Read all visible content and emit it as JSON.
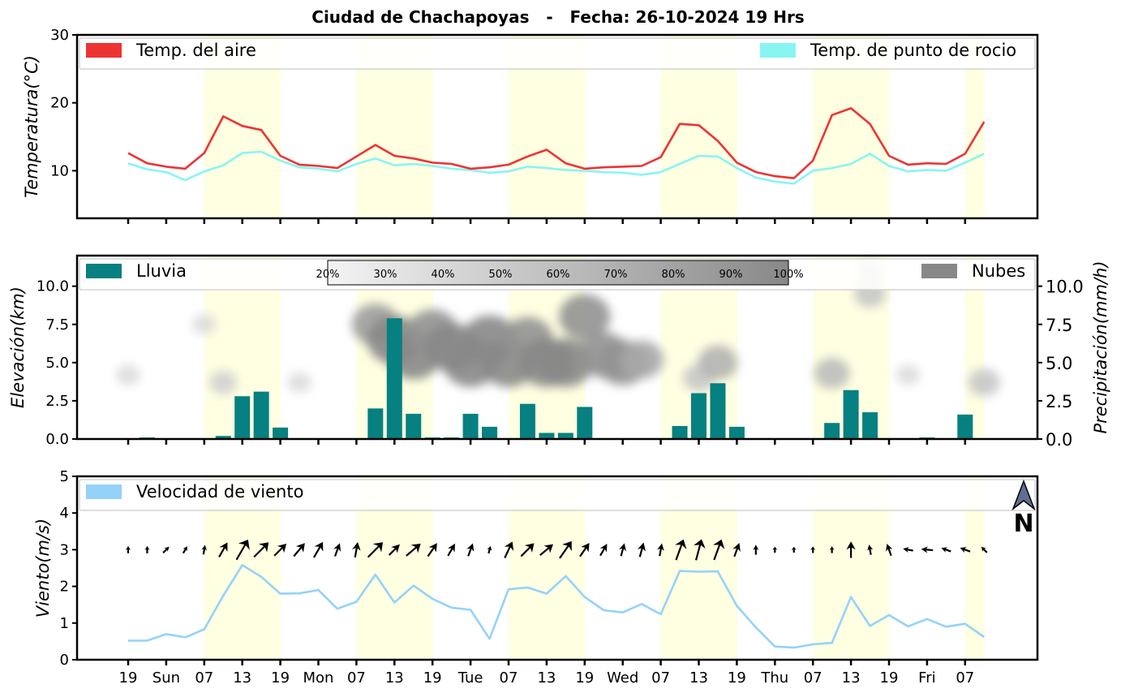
{
  "title": "Ciudad de Chachapoyas   -   Fecha: 26-10-2024 19 Hrs",
  "colors": {
    "temp_air": "#ee3333",
    "dew_point": "#88f5f2",
    "rain": "#068080",
    "clouds": "#888888",
    "wind": "#94d2fa",
    "daylight_band": "#ffffe2"
  },
  "x_axis": {
    "ticks": [
      "19",
      "Sun",
      "07",
      "13",
      "19",
      "Mon",
      "07",
      "13",
      "19",
      "Tue",
      "07",
      "13",
      "19",
      "Wed",
      "07",
      "13",
      "19",
      "Thu",
      "07",
      "13",
      "19",
      "Fri",
      "07"
    ],
    "step_hours": 3,
    "tick_every_steps": 2,
    "start_hour": 19,
    "daylight_hours": [
      7,
      19
    ]
  },
  "chart_data": [
    {
      "type": "line",
      "ylabel": "Temperatura(°C)",
      "ylim": [
        3,
        30
      ],
      "yticks": [
        10,
        20,
        30
      ],
      "legend": [
        {
          "label": "Temp. del aire",
          "placement": "top-left"
        },
        {
          "label": "Temp. de punto de rocio",
          "placement": "top-right"
        }
      ],
      "series": [
        {
          "name": "Temp. del aire",
          "values": [
            12.6,
            11.1,
            10.6,
            10.3,
            12.6,
            18.0,
            16.6,
            16.0,
            12.2,
            10.9,
            10.7,
            10.4,
            12.1,
            13.8,
            12.2,
            11.8,
            11.2,
            11.0,
            10.3,
            10.5,
            10.9,
            12.1,
            13.1,
            11.1,
            10.3,
            10.5,
            10.6,
            10.7,
            12.0,
            16.9,
            16.7,
            14.4,
            11.2,
            9.8,
            9.2,
            8.9,
            11.5,
            18.2,
            19.2,
            16.9,
            12.2,
            10.9,
            11.1,
            11.0,
            12.5,
            17.2
          ]
        },
        {
          "name": "Temp. de punto de rocio",
          "values": [
            11.1,
            10.2,
            9.8,
            8.6,
            9.9,
            10.8,
            12.6,
            12.8,
            11.5,
            10.5,
            10.3,
            9.9,
            11.0,
            11.8,
            10.8,
            11.0,
            10.7,
            10.3,
            10.1,
            9.7,
            9.9,
            10.6,
            10.4,
            10.1,
            10.0,
            9.8,
            9.7,
            9.4,
            9.8,
            11.0,
            12.2,
            12.1,
            10.4,
            9.0,
            8.4,
            8.1,
            10.0,
            10.4,
            11.0,
            12.5,
            10.7,
            9.9,
            10.1,
            10.0,
            11.2,
            12.5
          ]
        }
      ]
    },
    {
      "type": "bar",
      "ylabel": "Elevación(km)",
      "ylabel_right": "Precipitación(mm/h)",
      "ylim": [
        0,
        12
      ],
      "yticks": [
        0.0,
        2.5,
        5.0,
        7.5,
        10.0
      ],
      "yticks_right": [
        0.0,
        2.5,
        5.0,
        7.5,
        10.0
      ],
      "legend": [
        {
          "label": "Lluvia",
          "placement": "top-left"
        },
        {
          "label": "Nubes",
          "placement": "top-right"
        }
      ],
      "colorbar_labels": [
        "20%",
        "30%",
        "40%",
        "50%",
        "60%",
        "70%",
        "80%",
        "90%",
        "100%"
      ],
      "series": [
        {
          "name": "Lluvia",
          "values": [
            0.0,
            0.1,
            0.0,
            0.0,
            0.0,
            0.2,
            2.8,
            3.1,
            0.75,
            0.05,
            0.05,
            0.05,
            0.0,
            2.0,
            7.9,
            1.65,
            0.1,
            0.1,
            1.65,
            0.8,
            0.0,
            2.3,
            0.4,
            0.4,
            2.1,
            0.0,
            0.0,
            0.0,
            0.0,
            0.85,
            3.0,
            3.65,
            0.8,
            0.0,
            0.0,
            0.0,
            0.0,
            1.05,
            3.2,
            1.75,
            0.0,
            0.0,
            0.1,
            0.0,
            1.6,
            0.0
          ]
        }
      ],
      "clouds": [
        {
          "x": 0,
          "y": 4.2,
          "coverage": 20
        },
        {
          "x": 4,
          "y": 7.5,
          "coverage": 20
        },
        {
          "x": 5,
          "y": 3.7,
          "coverage": 30
        },
        {
          "x": 9,
          "y": 3.7,
          "coverage": 20
        },
        {
          "x": 13,
          "y": 7.5,
          "coverage": 80
        },
        {
          "x": 14,
          "y": 6.5,
          "coverage": 100
        },
        {
          "x": 15,
          "y": 5.5,
          "coverage": 100
        },
        {
          "x": 16,
          "y": 7.0,
          "coverage": 90
        },
        {
          "x": 17,
          "y": 6.0,
          "coverage": 100
        },
        {
          "x": 18,
          "y": 5.0,
          "coverage": 100
        },
        {
          "x": 19,
          "y": 6.5,
          "coverage": 100
        },
        {
          "x": 20,
          "y": 5.0,
          "coverage": 100
        },
        {
          "x": 21,
          "y": 6.5,
          "coverage": 90
        },
        {
          "x": 22,
          "y": 5.0,
          "coverage": 100
        },
        {
          "x": 23,
          "y": 5.0,
          "coverage": 100
        },
        {
          "x": 24,
          "y": 8.0,
          "coverage": 90
        },
        {
          "x": 25,
          "y": 5.5,
          "coverage": 90
        },
        {
          "x": 26,
          "y": 5.0,
          "coverage": 90
        },
        {
          "x": 27,
          "y": 5.2,
          "coverage": 70
        },
        {
          "x": 30,
          "y": 4.0,
          "coverage": 40
        },
        {
          "x": 31,
          "y": 5.0,
          "coverage": 60
        },
        {
          "x": 37,
          "y": 4.3,
          "coverage": 50
        },
        {
          "x": 39,
          "y": 11.0,
          "coverage": 30
        },
        {
          "x": 39,
          "y": 9.5,
          "coverage": 40
        },
        {
          "x": 41,
          "y": 4.2,
          "coverage": 20
        },
        {
          "x": 45,
          "y": 3.7,
          "coverage": 40
        }
      ]
    },
    {
      "type": "line",
      "ylabel": "Viento(m/s)",
      "ylim": [
        0,
        5
      ],
      "yticks": [
        0,
        1,
        2,
        3,
        4,
        5
      ],
      "legend": [
        {
          "label": "Velocidad de viento",
          "placement": "top-left"
        }
      ],
      "north_label": "N",
      "series": [
        {
          "name": "Velocidad de viento",
          "values": [
            0.52,
            0.52,
            0.7,
            0.61,
            0.83,
            1.75,
            2.58,
            2.26,
            1.8,
            1.81,
            1.9,
            1.39,
            1.58,
            2.32,
            1.56,
            2.02,
            1.66,
            1.42,
            1.36,
            0.57,
            1.92,
            1.97,
            1.8,
            2.28,
            1.71,
            1.35,
            1.29,
            1.52,
            1.24,
            2.42,
            2.4,
            2.41,
            1.47,
            0.88,
            0.36,
            0.33,
            0.42,
            0.46,
            1.71,
            0.92,
            1.22,
            0.91,
            1.11,
            0.9,
            0.98,
            0.62
          ]
        }
      ],
      "wind_direction_deg": [
        -90,
        -90,
        -45,
        -60,
        -80,
        -60,
        -60,
        -45,
        -45,
        -50,
        -60,
        -70,
        -80,
        -45,
        -45,
        -40,
        -55,
        -60,
        -70,
        -75,
        -65,
        -45,
        -40,
        -55,
        -55,
        -60,
        -75,
        -75,
        -80,
        -70,
        -75,
        -70,
        -70,
        -90,
        -90,
        -90,
        -90,
        -90,
        -90,
        -100,
        -110,
        -170,
        -175,
        -160,
        -160,
        -135
      ]
    }
  ]
}
